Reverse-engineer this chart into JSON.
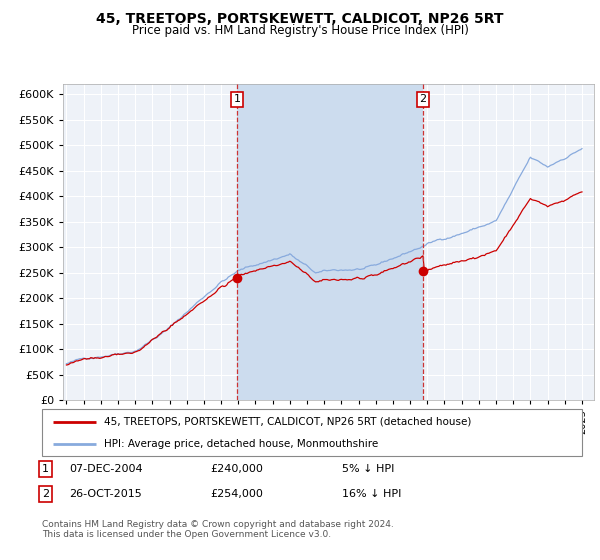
{
  "title": "45, TREETOPS, PORTSKEWETT, CALDICOT, NP26 5RT",
  "subtitle": "Price paid vs. HM Land Registry's House Price Index (HPI)",
  "legend_line1": "45, TREETOPS, PORTSKEWETT, CALDICOT, NP26 5RT (detached house)",
  "legend_line2": "HPI: Average price, detached house, Monmouthshire",
  "transaction1_date": "07-DEC-2004",
  "transaction1_price": 240000,
  "transaction1_pct": "5% ↓ HPI",
  "transaction2_date": "26-OCT-2015",
  "transaction2_price": 254000,
  "transaction2_pct": "16% ↓ HPI",
  "footer": "Contains HM Land Registry data © Crown copyright and database right 2024.\nThis data is licensed under the Open Government Licence v3.0.",
  "hpi_color": "#88aadd",
  "price_color": "#cc0000",
  "fill_color": "#ccdcee",
  "dashed_line_color": "#cc3333",
  "plot_bg_color": "#eef2f8",
  "grid_color": "#cccccc",
  "ylim": [
    0,
    620000
  ],
  "yticks": [
    0,
    50000,
    100000,
    150000,
    200000,
    250000,
    300000,
    350000,
    400000,
    450000,
    500000,
    550000,
    600000
  ],
  "xlim_start": 1995.0,
  "xlim_end": 2025.7
}
